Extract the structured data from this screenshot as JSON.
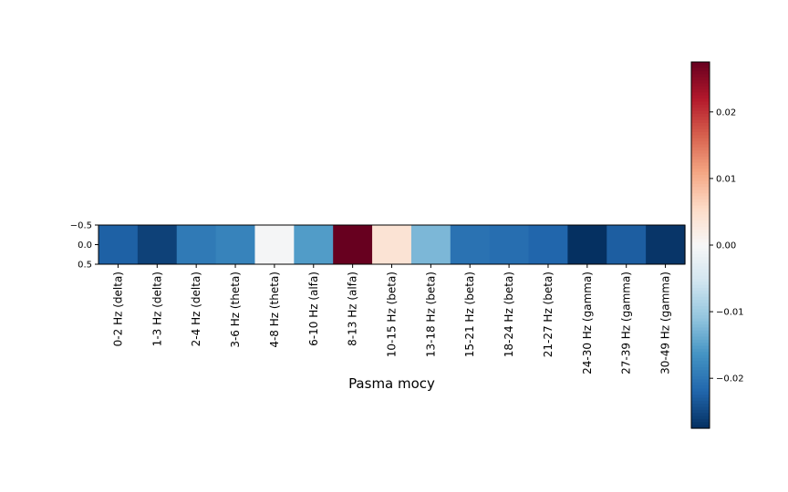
{
  "chart_data": {
    "type": "heatmap",
    "title": "",
    "xlabel": "Pasma mocy",
    "ylabel": "",
    "categories": [
      "0-2 Hz (delta)",
      "1-3 Hz (delta)",
      "2-4 Hz (delta)",
      "3-6 Hz (theta)",
      "4-8 Hz (theta)",
      "6-10 Hz (alfa)",
      "8-13 Hz (alfa)",
      "10-15 Hz (beta)",
      "13-18 Hz (beta)",
      "15-21 Hz (beta)",
      "18-24 Hz (beta)",
      "21-27 Hz (beta)",
      "24-30 Hz (gamma)",
      "27-39 Hz (gamma)",
      "30-49 Hz (gamma)"
    ],
    "values": [
      -0.0225,
      -0.0258,
      -0.0195,
      -0.0185,
      -0.0005,
      -0.0155,
      0.0275,
      0.004,
      -0.0125,
      -0.0205,
      -0.021,
      -0.022,
      -0.0275,
      -0.0228,
      -0.027
    ],
    "yticks": [
      "−0.5",
      "0.0",
      "0.5"
    ],
    "colormap": "RdBu_r",
    "colorbar": {
      "vmin": -0.0275,
      "vmax": 0.0275,
      "ticks": [
        0.02,
        0.01,
        0.0,
        -0.01,
        -0.02
      ],
      "tick_labels": [
        "0.02",
        "0.01",
        "0.00",
        "−0.01",
        "−0.02"
      ]
    },
    "grid": false,
    "legend": "none"
  }
}
